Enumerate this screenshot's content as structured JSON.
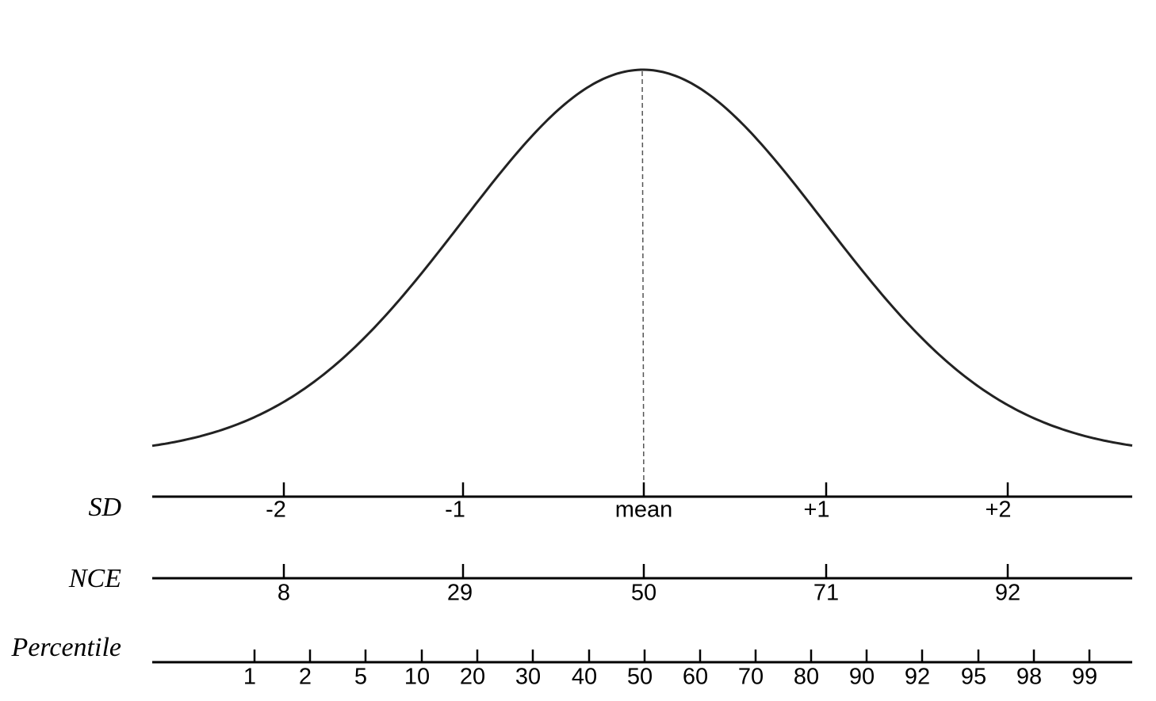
{
  "scales": [
    {
      "name": "SD",
      "ticks": [
        "-2",
        "-1",
        "mean",
        "+1",
        "+2"
      ]
    },
    {
      "name": "NCE",
      "ticks": [
        8,
        29,
        50,
        71,
        92
      ]
    },
    {
      "name": "Percentile",
      "ticks": [
        1,
        2,
        5,
        10,
        20,
        30,
        40,
        50,
        60,
        70,
        80,
        90,
        92,
        95,
        98,
        99
      ]
    }
  ]
}
